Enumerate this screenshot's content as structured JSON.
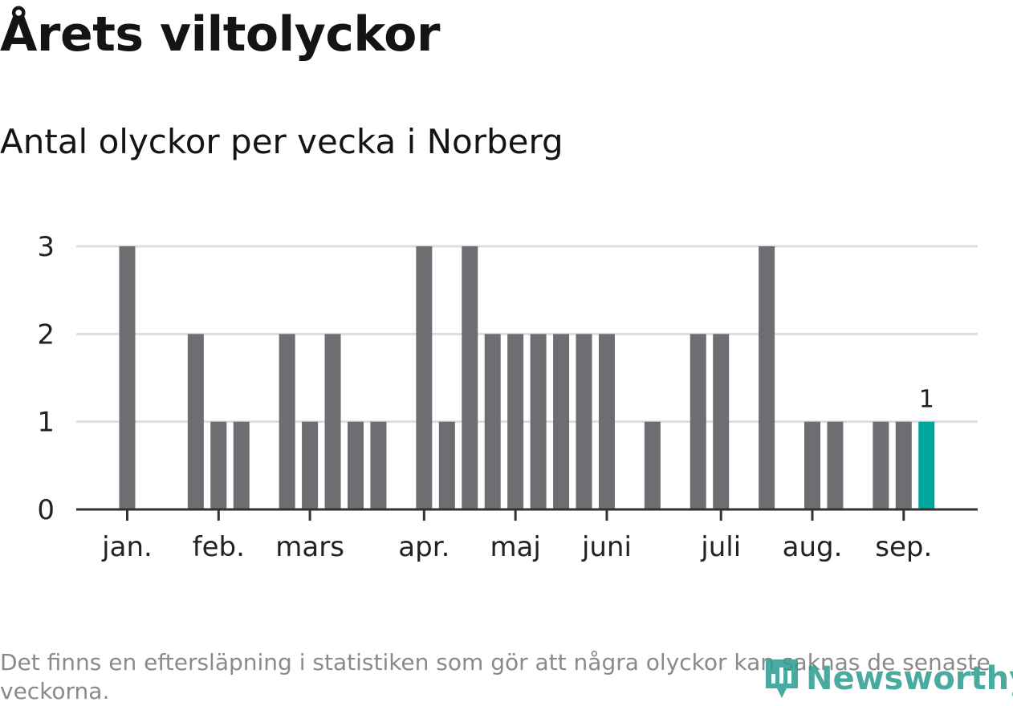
{
  "header": {
    "title": "Årets viltolyckor",
    "subtitle": "Antal olyckor per vecka i Norberg"
  },
  "footnote": "Det finns en eftersläpning i statistiken som gör att några olyckor kan saknas de senaste veckorna.",
  "logo": {
    "text": "Newsworthy",
    "icon": "bar-chart-logo-icon"
  },
  "colors": {
    "bar": "#6e6d72",
    "highlight": "#00a59b",
    "grid": "#dddddd",
    "axis": "#333333",
    "logo": "#2a9d8f"
  },
  "chart_data": {
    "type": "bar",
    "xlabel": "",
    "ylabel": "",
    "ylim": [
      0,
      3
    ],
    "yticks": [
      0,
      1,
      2,
      3
    ],
    "grid": true,
    "weeks": [
      1,
      2,
      3,
      4,
      5,
      6,
      7,
      8,
      9,
      10,
      11,
      12,
      13,
      14,
      15,
      16,
      17,
      18,
      19,
      20,
      21,
      22,
      23,
      24,
      25,
      26,
      27,
      28,
      29,
      30,
      31,
      32,
      33,
      34,
      35,
      36,
      37,
      38
    ],
    "values": [
      3,
      0,
      0,
      2,
      1,
      1,
      0,
      2,
      1,
      2,
      1,
      1,
      0,
      3,
      1,
      3,
      2,
      2,
      2,
      2,
      2,
      2,
      0,
      1,
      0,
      2,
      2,
      0,
      3,
      0,
      1,
      1,
      0,
      1,
      1,
      1,
      null,
      null
    ],
    "highlight_week": 36,
    "highlight_label": "1",
    "month_labels": [
      {
        "label": "jan.",
        "week": 1
      },
      {
        "label": "feb.",
        "week": 5
      },
      {
        "label": "mars",
        "week": 9
      },
      {
        "label": "apr.",
        "week": 14
      },
      {
        "label": "maj",
        "week": 18
      },
      {
        "label": "juni",
        "week": 22
      },
      {
        "label": "juli",
        "week": 27
      },
      {
        "label": "aug.",
        "week": 31
      },
      {
        "label": "sep.",
        "week": 35
      }
    ]
  }
}
